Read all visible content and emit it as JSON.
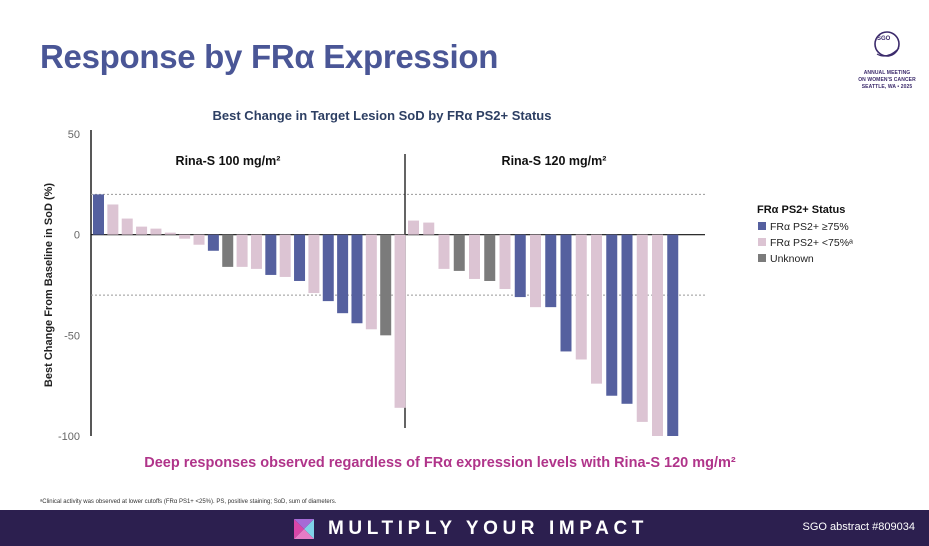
{
  "slide": {
    "title": "Response by FRα Expression",
    "headline": "Deep responses observed regardless of FRα expression levels with Rina-S 120 mg/m²",
    "footnote": "ᵃClinical activity was observed at lower cutoffs (FRα PS1+ <25%). PS, positive staining; SoD, sum of diameters.",
    "banner_text": "MULTIPLY YOUR IMPACT",
    "abstract": "SGO abstract #809034"
  },
  "logo": {
    "mark": "SGO",
    "line1": "ANNUAL MEETING",
    "line2": "ON WOMEN'S CANCER",
    "line3": "SEATTLE, WA • 2025",
    "icon": "sgo-swirl-icon"
  },
  "colors": {
    "title": "#4a5696",
    "headline": "#b0348a",
    "high": "#55609f",
    "low": "#dcc4d3",
    "unknown": "#7b7b7b",
    "banner": "#2c1f4f"
  },
  "chart_data": {
    "type": "bar",
    "title": "Best Change in Target Lesion SoD by FRα PS2+ Status",
    "ylabel": "Best Change From Baseline in SoD (%)",
    "ylim": [
      -100,
      50
    ],
    "yticks": [
      "50",
      "0",
      "-50",
      "-100"
    ],
    "reference_lines": [
      20,
      -30
    ],
    "legend": {
      "title": "FRα PS2+ Status",
      "placement": "right",
      "entries": [
        {
          "key": "high",
          "label": "FRα PS2+ ≥75%"
        },
        {
          "key": "low",
          "label": "FRα PS2+ <75%ᵃ"
        },
        {
          "key": "unknown",
          "label": "Unknown"
        }
      ]
    },
    "groups": [
      {
        "label": "Rina-S 100 mg/m²",
        "bars": [
          {
            "value": 20,
            "status": "high"
          },
          {
            "value": 15,
            "status": "low"
          },
          {
            "value": 8,
            "status": "low"
          },
          {
            "value": 4,
            "status": "low"
          },
          {
            "value": 3,
            "status": "low"
          },
          {
            "value": 1,
            "status": "low"
          },
          {
            "value": -2,
            "status": "low"
          },
          {
            "value": -5,
            "status": "low"
          },
          {
            "value": -8,
            "status": "high"
          },
          {
            "value": -16,
            "status": "unknown"
          },
          {
            "value": -16,
            "status": "low"
          },
          {
            "value": -17,
            "status": "low"
          },
          {
            "value": -20,
            "status": "high"
          },
          {
            "value": -21,
            "status": "low"
          },
          {
            "value": -23,
            "status": "high"
          },
          {
            "value": -29,
            "status": "low"
          },
          {
            "value": -33,
            "status": "high"
          },
          {
            "value": -39,
            "status": "high"
          },
          {
            "value": -44,
            "status": "high"
          },
          {
            "value": -47,
            "status": "low"
          },
          {
            "value": -50,
            "status": "unknown"
          },
          {
            "value": -86,
            "status": "low"
          }
        ]
      },
      {
        "label": "Rina-S 120 mg/m²",
        "bars": [
          {
            "value": 7,
            "status": "low"
          },
          {
            "value": 6,
            "status": "low"
          },
          {
            "value": -17,
            "status": "low"
          },
          {
            "value": -18,
            "status": "unknown"
          },
          {
            "value": -22,
            "status": "low"
          },
          {
            "value": -23,
            "status": "unknown"
          },
          {
            "value": -27,
            "status": "low"
          },
          {
            "value": -31,
            "status": "high"
          },
          {
            "value": -36,
            "status": "low"
          },
          {
            "value": -36,
            "status": "high"
          },
          {
            "value": -58,
            "status": "high"
          },
          {
            "value": -62,
            "status": "low"
          },
          {
            "value": -74,
            "status": "low"
          },
          {
            "value": -80,
            "status": "high"
          },
          {
            "value": -84,
            "status": "high"
          },
          {
            "value": -93,
            "status": "low"
          },
          {
            "value": -100,
            "status": "low"
          },
          {
            "value": -100,
            "status": "high"
          }
        ]
      }
    ]
  }
}
